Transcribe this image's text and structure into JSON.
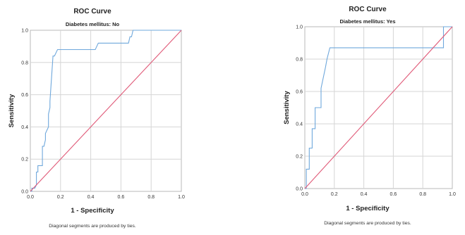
{
  "chart_data": [
    {
      "type": "line",
      "title": "ROC Curve",
      "subtitle": "Diabetes mellitus: No",
      "xlabel": "1 - Specificity",
      "ylabel": "Sensitivity",
      "xlim": [
        0,
        1
      ],
      "ylim": [
        0,
        1
      ],
      "x_ticks": [
        "0.0",
        "0.2",
        "0.4",
        "0.6",
        "0.8",
        "1.0"
      ],
      "y_ticks": [
        "0.0",
        "0.2",
        "0.4",
        "0.6",
        "0.8",
        "1.0"
      ],
      "grid": true,
      "footnote": "Diagonal segments are produced by ties.",
      "series": [
        {
          "color": "#6fa8dc",
          "x": [
            0,
            0.01,
            0.01,
            0.03,
            0.04,
            0.04,
            0.05,
            0.05,
            0.08,
            0.08,
            0.09,
            0.1,
            0.1,
            0.12,
            0.12,
            0.13,
            0.13,
            0.15,
            0.15,
            0.16,
            0.18,
            0.18,
            0.43,
            0.45,
            0.45,
            0.65,
            0.65,
            0.66,
            0.66,
            0.67,
            0.68,
            0.7,
            0.7,
            1.0
          ],
          "y": [
            0,
            0,
            0.02,
            0.02,
            0.04,
            0.12,
            0.12,
            0.16,
            0.16,
            0.28,
            0.28,
            0.32,
            0.36,
            0.4,
            0.48,
            0.52,
            0.56,
            0.84,
            0.84,
            0.84,
            0.88,
            0.88,
            0.88,
            0.92,
            0.92,
            0.92,
            0.92,
            0.96,
            0.96,
            0.96,
            1.0,
            1.0,
            1.0,
            1.0
          ]
        },
        {
          "color": "#e05a78",
          "x": [
            0,
            1
          ],
          "y": [
            0,
            1
          ]
        }
      ]
    },
    {
      "type": "line",
      "title": "ROC Curve",
      "subtitle": "Diabetes mellitus: Yes",
      "xlabel": "1 - Specificity",
      "ylabel": "Sensitivity",
      "xlim": [
        0,
        1
      ],
      "ylim": [
        0,
        1
      ],
      "x_ticks": [
        "0.0",
        "0.2",
        "0.4",
        "0.6",
        "0.8",
        "1.0"
      ],
      "y_ticks": [
        "0.0",
        "0.2",
        "0.4",
        "0.6",
        "0.8",
        "1.0"
      ],
      "grid": true,
      "footnote": "Diagonal segments are produced by ties.",
      "series": [
        {
          "color": "#6fa8dc",
          "x": [
            0,
            0.01,
            0.01,
            0.03,
            0.03,
            0.05,
            0.05,
            0.07,
            0.07,
            0.11,
            0.11,
            0.14,
            0.15,
            0.17,
            0.17,
            0.93,
            0.94,
            0.94,
            1.0
          ],
          "y": [
            0,
            0,
            0.12,
            0.12,
            0.25,
            0.25,
            0.37,
            0.37,
            0.5,
            0.5,
            0.62,
            0.75,
            0.8,
            0.87,
            0.87,
            0.87,
            0.87,
            1.0,
            1.0
          ]
        },
        {
          "color": "#e05a78",
          "x": [
            0,
            1
          ],
          "y": [
            0,
            1
          ]
        }
      ]
    }
  ]
}
